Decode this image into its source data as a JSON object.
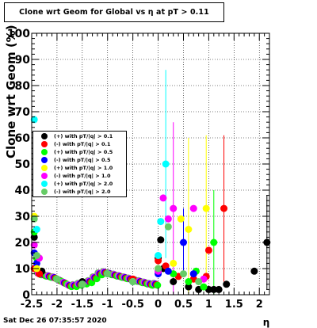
{
  "chart_data": {
    "type": "scatter",
    "title": "Clone wrt Geom for Global vs   η at pT > 0.11",
    "xlabel": "η",
    "ylabel": "Clone wrt Geom (%)",
    "xlim": [
      -2.5,
      2.2
    ],
    "ylim": [
      0,
      100
    ],
    "x_ticks": [
      -2.5,
      -2,
      -1.5,
      -1,
      -0.5,
      0,
      0.5,
      1,
      1.5,
      2
    ],
    "x_tick_labels": [
      "-2.5",
      "-2",
      "-1.5",
      "-1",
      "-0.5",
      "0",
      "0.5",
      "1",
      "1.5",
      "2"
    ],
    "y_ticks": [
      0,
      10,
      20,
      30,
      40,
      50,
      60,
      70,
      80,
      90,
      100
    ],
    "y_tick_labels": [
      "0",
      "10",
      "20",
      "30",
      "40",
      "50",
      "60",
      "70",
      "80",
      "90",
      "100"
    ],
    "grid": true,
    "legend_position": "left-middle",
    "series": [
      {
        "name": "(+) with pT/|q| > 0.1",
        "color": "#000000",
        "points": [
          [
            -2.45,
            22
          ],
          [
            -2.4,
            14
          ],
          [
            -2.3,
            9
          ],
          [
            -2.0,
            6
          ],
          [
            -1.5,
            5
          ],
          [
            -1.0,
            8
          ],
          [
            -0.5,
            5
          ],
          [
            0.0,
            14
          ],
          [
            0.05,
            21
          ],
          [
            0.1,
            10
          ],
          [
            0.3,
            5
          ],
          [
            0.6,
            3
          ],
          [
            0.8,
            2
          ],
          [
            1.0,
            2
          ],
          [
            1.1,
            2
          ],
          [
            1.2,
            2
          ],
          [
            1.35,
            4
          ],
          [
            1.9,
            9
          ],
          [
            2.15,
            20
          ]
        ],
        "err": [
          [
            2.15,
            18
          ]
        ]
      },
      {
        "name": "(-) with pT/|q| > 0.1",
        "color": "#ff0000",
        "points": [
          [
            -2.45,
            10
          ],
          [
            -2.35,
            8
          ],
          [
            -2.0,
            6
          ],
          [
            -1.5,
            4
          ],
          [
            -1.0,
            8
          ],
          [
            -0.5,
            6
          ],
          [
            0.0,
            13
          ],
          [
            0.15,
            11
          ],
          [
            0.4,
            7
          ],
          [
            0.7,
            6
          ],
          [
            0.95,
            7
          ],
          [
            1.0,
            17
          ],
          [
            1.3,
            33
          ]
        ],
        "err": [
          [
            1.3,
            28
          ]
        ]
      },
      {
        "name": "(+) with pT/|q| > 0.5",
        "color": "#00ff00",
        "points": [
          [
            -2.45,
            24
          ],
          [
            -2.4,
            14
          ],
          [
            -2.0,
            6
          ],
          [
            -1.5,
            4
          ],
          [
            -1.0,
            8
          ],
          [
            -0.5,
            5
          ],
          [
            0.0,
            9
          ],
          [
            0.3,
            8
          ],
          [
            0.6,
            5
          ],
          [
            0.75,
            9
          ],
          [
            0.9,
            3
          ],
          [
            1.1,
            20
          ]
        ],
        "err": [
          [
            1.1,
            20
          ]
        ]
      },
      {
        "name": "(-) with pT/|q| > 0.5",
        "color": "#0000ff",
        "points": [
          [
            -2.45,
            16
          ],
          [
            -2.4,
            12
          ],
          [
            -2.0,
            6
          ],
          [
            -1.5,
            4
          ],
          [
            -1.0,
            8
          ],
          [
            -0.5,
            5
          ],
          [
            0.0,
            8
          ],
          [
            0.2,
            9
          ],
          [
            0.5,
            20
          ],
          [
            0.7,
            8
          ]
        ],
        "err": [
          [
            0.5,
            13
          ]
        ]
      },
      {
        "name": "(+) with pT/|q| > 1.0",
        "color": "#ffff00",
        "points": [
          [
            -2.45,
            30
          ],
          [
            -2.4,
            10
          ],
          [
            -2.0,
            6
          ],
          [
            -1.5,
            4
          ],
          [
            -1.0,
            8
          ],
          [
            -0.5,
            5
          ],
          [
            0.0,
            10
          ],
          [
            0.3,
            12
          ],
          [
            0.45,
            29
          ],
          [
            0.6,
            25
          ],
          [
            0.95,
            33
          ]
        ],
        "err": [
          [
            0.95,
            28
          ],
          [
            0.6,
            35
          ]
        ]
      },
      {
        "name": "(-) with pT/|q| > 1.0",
        "color": "#ff00ff",
        "points": [
          [
            -2.45,
            19
          ],
          [
            -2.35,
            14
          ],
          [
            -2.0,
            6
          ],
          [
            -1.5,
            4
          ],
          [
            -1.0,
            8
          ],
          [
            -0.5,
            5
          ],
          [
            0.0,
            9
          ],
          [
            0.1,
            37
          ],
          [
            0.2,
            29
          ],
          [
            0.3,
            33
          ],
          [
            0.7,
            33
          ],
          [
            0.9,
            6
          ]
        ],
        "err": [
          [
            0.3,
            33
          ]
        ]
      },
      {
        "name": "(+) with pT/|q| > 2.0",
        "color": "#00ffff",
        "points": [
          [
            -2.45,
            67
          ],
          [
            -2.4,
            25
          ],
          [
            -2.0,
            6
          ],
          [
            -1.5,
            4
          ],
          [
            -1.0,
            8
          ],
          [
            -0.5,
            5
          ],
          [
            0.0,
            15
          ],
          [
            0.05,
            28
          ],
          [
            0.15,
            50
          ]
        ],
        "err": [
          [
            0.15,
            36
          ]
        ]
      },
      {
        "name": "(-) with pT/|q| > 2.0",
        "color": "#66cc66",
        "points": [
          [
            -2.45,
            29
          ],
          [
            -2.4,
            15
          ],
          [
            -2.0,
            6
          ],
          [
            -1.5,
            4
          ],
          [
            -1.0,
            8
          ],
          [
            -0.5,
            5
          ],
          [
            0.0,
            10
          ],
          [
            0.2,
            26
          ],
          [
            0.5,
            8
          ],
          [
            0.8,
            5
          ]
        ],
        "err": []
      }
    ],
    "band": {
      "x": [
        -2.35,
        -2.25,
        -2.15,
        -2.05,
        -1.95,
        -1.85,
        -1.75,
        -1.65,
        -1.55,
        -1.45,
        -1.35,
        -1.25,
        -1.15,
        -1.05,
        -0.95,
        -0.85,
        -0.75,
        -0.65,
        -0.55,
        -0.45,
        -0.35,
        -0.25,
        -0.15,
        -0.05
      ],
      "y": [
        8,
        7.5,
        7,
        6.5,
        5.5,
        4.5,
        3.5,
        3.5,
        4,
        4.5,
        5,
        6.5,
        8,
        8.5,
        8,
        7.5,
        7,
        6.5,
        6,
        5.5,
        5,
        4.5,
        4,
        4
      ]
    }
  },
  "footer": {
    "timestamp": "Sat Dec 26 07:35:57 2020"
  }
}
